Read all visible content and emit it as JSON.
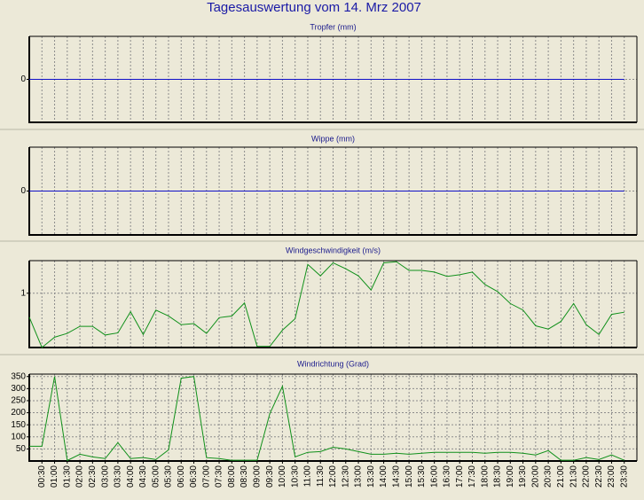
{
  "title": "Tagesauswertung vom 14. Mrz 2007",
  "chart_data": [
    {
      "type": "line",
      "title": "Tropfer (mm)",
      "ylim": [
        -1,
        1
      ],
      "yticks": [
        0
      ],
      "grid": true,
      "x": [
        0,
        0.5,
        1,
        1.5,
        2,
        2.5,
        3,
        3.5,
        4,
        4.5,
        5,
        5.5,
        6,
        6.5,
        7,
        7.5,
        8,
        8.5,
        9,
        9.5,
        10,
        10.5,
        11,
        11.5,
        12,
        12.5,
        13,
        13.5,
        14,
        14.5,
        15,
        15.5,
        16,
        16.5,
        17,
        17.5,
        18,
        18.5,
        19,
        19.5,
        20,
        20.5,
        21,
        21.5,
        22,
        22.5,
        23,
        23.5
      ],
      "series": [
        {
          "color": "#1010c8",
          "values": [
            0,
            0,
            0,
            0,
            0,
            0,
            0,
            0,
            0,
            0,
            0,
            0,
            0,
            0,
            0,
            0,
            0,
            0,
            0,
            0,
            0,
            0,
            0,
            0,
            0,
            0,
            0,
            0,
            0,
            0,
            0,
            0,
            0,
            0,
            0,
            0,
            0,
            0,
            0,
            0,
            0,
            0,
            0,
            0,
            0,
            0,
            0,
            0
          ]
        }
      ]
    },
    {
      "type": "line",
      "title": "Wippe (mm)",
      "ylim": [
        -1,
        1
      ],
      "yticks": [
        0
      ],
      "grid": true,
      "x": [
        0,
        0.5,
        1,
        1.5,
        2,
        2.5,
        3,
        3.5,
        4,
        4.5,
        5,
        5.5,
        6,
        6.5,
        7,
        7.5,
        8,
        8.5,
        9,
        9.5,
        10,
        10.5,
        11,
        11.5,
        12,
        12.5,
        13,
        13.5,
        14,
        14.5,
        15,
        15.5,
        16,
        16.5,
        17,
        17.5,
        18,
        18.5,
        19,
        19.5,
        20,
        20.5,
        21,
        21.5,
        22,
        22.5,
        23,
        23.5
      ],
      "series": [
        {
          "color": "#1010c8",
          "values": [
            0,
            0,
            0,
            0,
            0,
            0,
            0,
            0,
            0,
            0,
            0,
            0,
            0,
            0,
            0,
            0,
            0,
            0,
            0,
            0,
            0,
            0,
            0,
            0,
            0,
            0,
            0,
            0,
            0,
            0,
            0,
            0,
            0,
            0,
            0,
            0,
            0,
            0,
            0,
            0,
            0,
            0,
            0,
            0,
            0,
            0,
            0,
            0
          ]
        }
      ]
    },
    {
      "type": "line",
      "title": "Windgeschwindigkeit (m/s)",
      "ylim": [
        0,
        1.6
      ],
      "yticks": [
        1
      ],
      "grid": true,
      "x": [
        0,
        0.5,
        1,
        1.5,
        2,
        2.5,
        3,
        3.5,
        4,
        4.5,
        5,
        5.5,
        6,
        6.5,
        7,
        7.5,
        8,
        8.5,
        9,
        9.5,
        10,
        10.5,
        11,
        11.5,
        12,
        12.5,
        13,
        13.5,
        14,
        14.5,
        15,
        15.5,
        16,
        16.5,
        17,
        17.5,
        18,
        18.5,
        19,
        19.5,
        20,
        20.5,
        21,
        21.5,
        22,
        22.5,
        23,
        23.5
      ],
      "series": [
        {
          "color": "#10901a",
          "values": [
            0.56,
            0.0,
            0.19,
            0.26,
            0.39,
            0.39,
            0.23,
            0.27,
            0.66,
            0.24,
            0.69,
            0.58,
            0.42,
            0.44,
            0.26,
            0.55,
            0.58,
            0.82,
            0.02,
            0.02,
            0.32,
            0.53,
            1.53,
            1.32,
            1.56,
            1.45,
            1.32,
            1.06,
            1.56,
            1.58,
            1.42,
            1.42,
            1.39,
            1.31,
            1.34,
            1.39,
            1.16,
            1.03,
            0.81,
            0.69,
            0.4,
            0.34,
            0.48,
            0.81,
            0.42,
            0.24,
            0.61,
            0.65
          ]
        }
      ]
    },
    {
      "type": "line",
      "title": "Windrichtung (Grad)",
      "ylim": [
        0,
        360
      ],
      "yticks": [
        50,
        100,
        150,
        200,
        250,
        300,
        350
      ],
      "grid": true,
      "xlim": [
        0,
        24
      ],
      "x": [
        0,
        0.5,
        1,
        1.5,
        2,
        2.5,
        3,
        3.5,
        4,
        4.5,
        5,
        5.5,
        6,
        6.5,
        7,
        7.5,
        8,
        8.5,
        9,
        9.5,
        10,
        10.5,
        11,
        11.5,
        12,
        12.5,
        13,
        13.5,
        14,
        14.5,
        15,
        15.5,
        16,
        16.5,
        17,
        17.5,
        18,
        18.5,
        19,
        19.5,
        20,
        20.5,
        21,
        21.5,
        22,
        22.5,
        23,
        23.5
      ],
      "xticks": [
        {
          "value": 0.5,
          "label": "00:30"
        },
        {
          "value": 1,
          "label": "01:00"
        },
        {
          "value": 1.5,
          "label": "01:30"
        },
        {
          "value": 2,
          "label": "02:00"
        },
        {
          "value": 2.5,
          "label": "02:30"
        },
        {
          "value": 3,
          "label": "03:00"
        },
        {
          "value": 3.5,
          "label": "03:30"
        },
        {
          "value": 4,
          "label": "04:00"
        },
        {
          "value": 4.5,
          "label": "04:30"
        },
        {
          "value": 5,
          "label": "05:00"
        },
        {
          "value": 5.5,
          "label": "05:30"
        },
        {
          "value": 6,
          "label": "06:00"
        },
        {
          "value": 6.5,
          "label": "06:30"
        },
        {
          "value": 7,
          "label": "07:00"
        },
        {
          "value": 7.5,
          "label": "07:30"
        },
        {
          "value": 8,
          "label": "08:00"
        },
        {
          "value": 8.5,
          "label": "08:30"
        },
        {
          "value": 9,
          "label": "09:00"
        },
        {
          "value": 9.5,
          "label": "09:30"
        },
        {
          "value": 10,
          "label": "10:00"
        },
        {
          "value": 10.5,
          "label": "10:30"
        },
        {
          "value": 11,
          "label": "11:00"
        },
        {
          "value": 11.5,
          "label": "11:30"
        },
        {
          "value": 12,
          "label": "12:00"
        },
        {
          "value": 12.5,
          "label": "12:30"
        },
        {
          "value": 13,
          "label": "13:00"
        },
        {
          "value": 13.5,
          "label": "13:30"
        },
        {
          "value": 14,
          "label": "14:00"
        },
        {
          "value": 14.5,
          "label": "14:30"
        },
        {
          "value": 15,
          "label": "15:00"
        },
        {
          "value": 15.5,
          "label": "15:30"
        },
        {
          "value": 16,
          "label": "16:00"
        },
        {
          "value": 16.5,
          "label": "16:30"
        },
        {
          "value": 17,
          "label": "17:00"
        },
        {
          "value": 17.5,
          "label": "17:30"
        },
        {
          "value": 18,
          "label": "18:00"
        },
        {
          "value": 18.5,
          "label": "18:30"
        },
        {
          "value": 19,
          "label": "19:00"
        },
        {
          "value": 19.5,
          "label": "19:30"
        },
        {
          "value": 20,
          "label": "20:00"
        },
        {
          "value": 20.5,
          "label": "20:30"
        },
        {
          "value": 21,
          "label": "21:00"
        },
        {
          "value": 21.5,
          "label": "21:30"
        },
        {
          "value": 22,
          "label": "22:00"
        },
        {
          "value": 22.5,
          "label": "22:30"
        },
        {
          "value": 23,
          "label": "23:00"
        },
        {
          "value": 23.5,
          "label": "23:30"
        }
      ],
      "series": [
        {
          "color": "#10901a",
          "values": [
            61,
            61,
            350,
            2,
            28,
            17,
            10,
            76,
            10,
            14,
            6,
            46,
            343,
            350,
            14,
            10,
            3,
            3,
            3,
            196,
            310,
            17,
            36,
            39,
            57,
            50,
            39,
            28,
            28,
            32,
            28,
            32,
            36,
            36,
            36,
            36,
            32,
            36,
            36,
            32,
            25,
            43,
            3,
            3,
            14,
            6,
            25,
            3
          ]
        }
      ]
    }
  ]
}
